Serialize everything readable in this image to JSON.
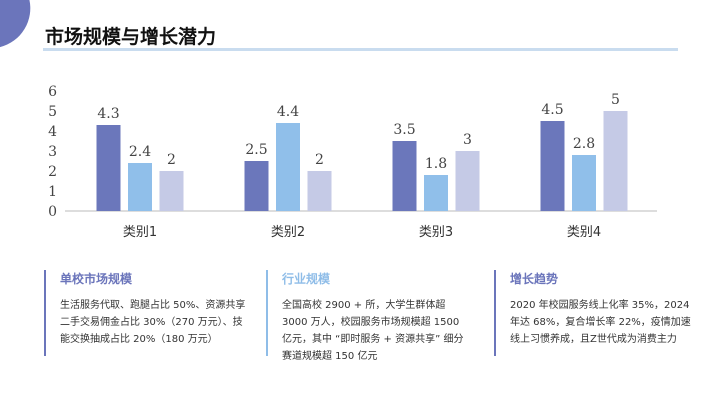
{
  "title": "市场规模与增长潜力",
  "colors": {
    "series": [
      "#6b77bb",
      "#90bfea",
      "#c5cae6"
    ],
    "accent": "#6b75bb",
    "accent2": "#8fbde8"
  },
  "chart_data": {
    "type": "bar",
    "categories": [
      "类别1",
      "类别2",
      "类别3",
      "类别4"
    ],
    "series": [
      {
        "values": [
          4.3,
          2.5,
          3.5,
          4.5
        ]
      },
      {
        "values": [
          2.4,
          4.4,
          1.8,
          2.8
        ]
      },
      {
        "values": [
          2,
          2,
          3,
          5
        ]
      }
    ],
    "ylim": [
      0,
      6
    ],
    "yticks": [
      "0",
      "1",
      "2",
      "3",
      "4",
      "5",
      "6"
    ],
    "grid": false,
    "data_labels": true
  },
  "cards": [
    {
      "heading": "单校市场规模",
      "body": "生活服务代取、跑腿占比 50%、资源共享二手交易佣金占比 30%（270 万元）、技能交换抽成占比 20%（180 万元）"
    },
    {
      "heading": "行业规模",
      "body": "全国高校 2900 + 所，大学生群体超 3000 万人，校园服务市场规模超 1500 亿元，其中 “即时服务 + 资源共享” 细分赛道规模超 150 亿元"
    },
    {
      "heading": "增长趋势",
      "body": "2020 年校园服务线上化率 35%，2024 年达 68%，复合增长率 22%，疫情加速线上习惯养成，且Z世代成为消费主力"
    }
  ]
}
